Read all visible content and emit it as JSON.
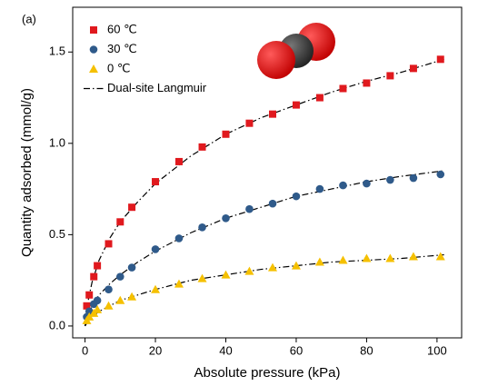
{
  "chart_data": {
    "type": "scatter",
    "annotation": "(a)",
    "x_label": "Absolute pressure (kPa)",
    "y_label": "Quantity adsorbed (mmol/g)",
    "xlim": [
      -3.5,
      107
    ],
    "ylim": [
      -0.065,
      1.745
    ],
    "xticks": [
      0,
      20,
      40,
      60,
      80,
      100
    ],
    "yticks": [
      {
        "value": 0,
        "label": "0.0"
      },
      0.5,
      {
        "value": 1,
        "label": "1.0"
      },
      1.5
    ],
    "x": [
      0.5,
      1.2,
      2.5,
      3.5,
      6.7,
      10,
      13.3,
      20,
      26.7,
      33.3,
      40,
      46.7,
      53.3,
      60,
      66.7,
      73.3,
      80,
      86.7,
      93.3,
      101
    ],
    "series": [
      {
        "name": "60 ℃",
        "color": "#e0191e",
        "marker": "square",
        "values": [
          0.11,
          0.17,
          0.27,
          0.33,
          0.45,
          0.57,
          0.65,
          0.79,
          0.9,
          0.98,
          1.05,
          1.11,
          1.16,
          1.21,
          1.25,
          1.3,
          1.33,
          1.37,
          1.41,
          1.46
        ]
      },
      {
        "name": "30 ℃",
        "color": "#2f5a8a",
        "marker": "circle",
        "values": [
          0.05,
          0.08,
          0.12,
          0.14,
          0.2,
          0.27,
          0.32,
          0.42,
          0.48,
          0.54,
          0.59,
          0.64,
          0.67,
          0.71,
          0.75,
          0.77,
          0.78,
          0.8,
          0.81,
          0.83
        ]
      },
      {
        "name": "0 ℃",
        "color": "#f5c000",
        "marker": "triangle",
        "values": [
          0.03,
          0.05,
          0.07,
          0.09,
          0.11,
          0.14,
          0.16,
          0.2,
          0.23,
          0.26,
          0.28,
          0.3,
          0.32,
          0.33,
          0.35,
          0.36,
          0.37,
          0.37,
          0.38,
          0.38
        ]
      }
    ],
    "fit": {
      "name": "Dual-site Langmuir",
      "color": "#000000",
      "x": [
        0,
        1,
        2,
        4,
        7,
        10,
        15,
        20,
        30,
        40,
        50,
        60,
        70,
        80,
        90,
        102
      ],
      "curves": [
        [
          0,
          0.15,
          0.24,
          0.36,
          0.48,
          0.57,
          0.68,
          0.78,
          0.93,
          1.05,
          1.14,
          1.21,
          1.28,
          1.34,
          1.39,
          1.46
        ],
        [
          0,
          0.06,
          0.11,
          0.17,
          0.23,
          0.28,
          0.35,
          0.41,
          0.51,
          0.59,
          0.65,
          0.71,
          0.75,
          0.79,
          0.82,
          0.85
        ],
        [
          0,
          0.03,
          0.05,
          0.08,
          0.11,
          0.14,
          0.17,
          0.2,
          0.25,
          0.28,
          0.31,
          0.33,
          0.35,
          0.36,
          0.37,
          0.39
        ]
      ]
    }
  }
}
